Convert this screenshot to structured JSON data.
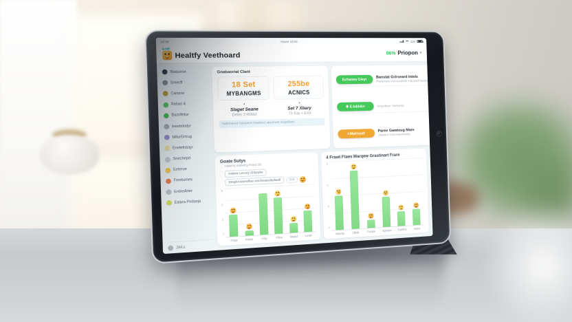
{
  "colors": {
    "accent_green": "#45c95a",
    "accent_orange": "#f0a832",
    "bar_green": "#8ade8d",
    "badge_orange": "#f09a3e",
    "badge_yellow": "#f6c43b"
  },
  "status_bar": {
    "left_time": "10:08",
    "center_text": "Asues 10:04",
    "battery_percent": "100"
  },
  "header": {
    "app_tag": "6-HP",
    "app_icon": "smiley-orange",
    "title": "Healtfy Veethoard",
    "score": "06%",
    "profile_name": "Priopon",
    "chevron": "▾"
  },
  "sidebar": {
    "items": [
      {
        "label": "Biaquese",
        "color": "#2f3e4e"
      },
      {
        "label": "Smecff",
        "color": "#8a939b"
      },
      {
        "label": "Cararse",
        "color": "#b9a23a"
      },
      {
        "label": "Relser 4",
        "color": "#57c968"
      },
      {
        "label": "Bazofintur",
        "color": "#49c35d"
      },
      {
        "label": "Ineetelodyr",
        "color": "#aab3ba"
      },
      {
        "label": "MiturGrtrug",
        "color": "#9b8fd4"
      },
      {
        "label": "Enelefntstyr",
        "color": "#f0e3a8"
      },
      {
        "label": "Snechepd",
        "color": "#c7ccd1"
      },
      {
        "label": "Eeterue",
        "color": "#f2c94c"
      },
      {
        "label": "Freeturnes",
        "color": "#f07b4a"
      },
      {
        "label": "EntireArter",
        "color": "#b9c0c6"
      },
      {
        "label": "Ealara Pedanja",
        "color": "#cfdc5a"
      }
    ],
    "footer_label": "JAKu"
  },
  "stats_panel": {
    "title": "Gnabaoriat Clant",
    "cards": [
      {
        "value": "18 Set",
        "label": "MYBANGMS",
        "sub_title": "Slaget Seane",
        "sub_text": "Detter 2:458&d"
      },
      {
        "value": "255be",
        "label": "ACNICS",
        "sub_title": "Set 7 Xbary",
        "sub_text": "TX Eay + EXd"
      }
    ],
    "notice": "NdsVwred Swoetret Rawknd ateumetr Supsfium."
  },
  "actions_panel": {
    "rows": [
      {
        "pill": "Echanea Gleyr",
        "pill_color": "#45c95a",
        "pill_dot": false,
        "title": "Banstat Grirseard Intels",
        "text": "Rawanars intecyadstls Inacandf liaalfvremwolf",
        "badge": "smiley-yellow"
      },
      {
        "pill": "E-b&b&n",
        "pill_color": "#45c95a",
        "pill_dot": true,
        "title": "",
        "text": "Sntyntleyr Herkarlat",
        "badge": "smiley-yellow"
      },
      {
        "pill": "I-Matmya#",
        "pill_color": "#f0a832",
        "pill_dot": false,
        "title": "Paree Gawtoug Mare",
        "text": "Utawert snynraaumutllg",
        "badge": "smiley-yellow"
      }
    ]
  },
  "chart_data": [
    {
      "type": "bar",
      "title": "Goate Sutys",
      "subtitle": "Aswcnj watwfrg Pond 30",
      "filters": [
        "Astiew Lecory Ahlyrplw",
        "SmgiVuswrwfkar wscheated&dieall"
      ],
      "filter_count": "(24)",
      "filter_badge": "smiley-orange",
      "categories": [
        "Frtya",
        "Imw&",
        "Avty",
        "Fifua",
        "Ma&d",
        "Lmsir"
      ],
      "values": [
        4.5,
        1,
        8.5,
        7.5,
        2,
        4.5
      ],
      "emojis": [
        "smiley-orange",
        "smiley-orange",
        null,
        "smiley-yellow",
        "smiley-yellow",
        "smiley-orange"
      ],
      "ylim": [
        0,
        10
      ],
      "yticks": [
        "8",
        "6",
        "4",
        "2"
      ],
      "xlabel": "",
      "ylabel": "",
      "grid": true,
      "legend": "none"
    },
    {
      "type": "bar",
      "title": "4 Frawt Ftaes Marqew Grastinart Frare",
      "subtitle": "",
      "categories": [
        "Mumta",
        "2Mqk",
        "Fvtube",
        "4Qmbw",
        "TqWths",
        "Wata"
      ],
      "values": [
        5,
        8.5,
        1.2,
        4.5,
        2.2,
        2.4
      ],
      "emojis": [
        "smiley-yellow",
        "smiley-yellow",
        "smiley-orange",
        "smiley-yellow",
        "smiley-yellow",
        "smiley-orange"
      ],
      "ylim": [
        0,
        10
      ],
      "yticks": [
        "8",
        "6",
        "4",
        "2"
      ],
      "xlabel": "",
      "ylabel": "",
      "grid": true,
      "legend": "none"
    }
  ]
}
